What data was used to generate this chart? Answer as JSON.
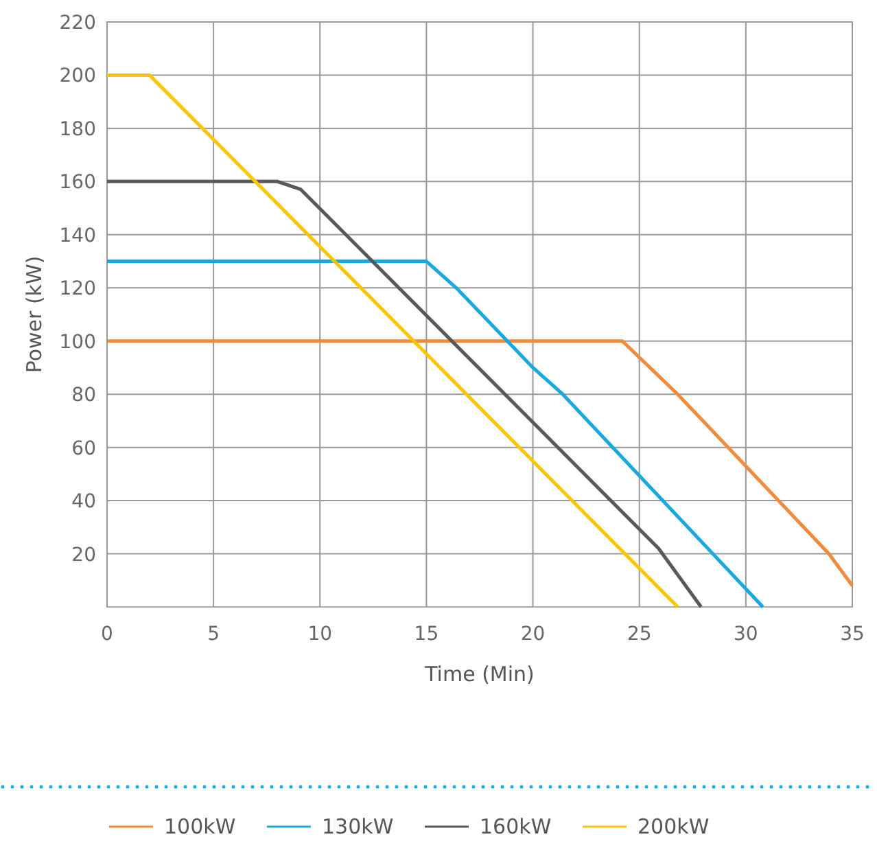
{
  "chart_data": {
    "type": "line",
    "xlabel": "Time (Min)",
    "ylabel": "Power (kW)",
    "xlim": [
      0,
      35
    ],
    "xticks": [
      0,
      5,
      10,
      15,
      20,
      25,
      30,
      35
    ],
    "ylim": [
      0,
      220
    ],
    "yticks": [
      20,
      40,
      60,
      80,
      100,
      120,
      140,
      160,
      180,
      200,
      220
    ],
    "grid": true,
    "legend": "bottom",
    "marker": "none",
    "line_style": "solid",
    "series": [
      {
        "name": "100kW",
        "color": "#f08a3c",
        "x": [
          0,
          24.2,
          26.8,
          33.9,
          35
        ],
        "values": [
          100,
          100,
          80,
          20,
          8
        ]
      },
      {
        "name": "130kW",
        "color": "#1aa9de",
        "x": [
          0,
          15,
          16.4,
          20,
          21.4,
          30.8
        ],
        "values": [
          130,
          130,
          120,
          90,
          80,
          0
        ]
      },
      {
        "name": "160kW",
        "color": "#58575a",
        "x": [
          0,
          8,
          9.1,
          25.9,
          27.9
        ],
        "values": [
          160,
          160,
          157,
          22,
          0
        ]
      },
      {
        "name": "200kW",
        "color": "#fcc500",
        "x": [
          0,
          2,
          26.8
        ],
        "values": [
          200,
          200,
          0
        ]
      }
    ]
  }
}
